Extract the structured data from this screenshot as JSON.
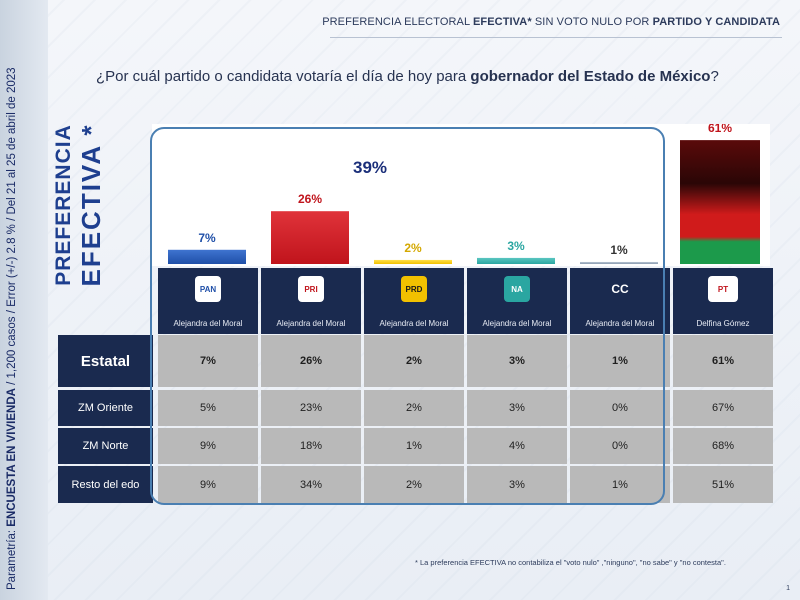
{
  "header": {
    "prefix": "PREFERENCIA ELECTORAL ",
    "bold1": "EFECTIVA*",
    "middle": " SIN VOTO NULO POR ",
    "bold2": "PARTIDO Y CANDIDATA"
  },
  "question": {
    "text": "¿Por cuál partido o candidata votaría el día de hoy para ",
    "bold": "gobernador del Estado de México",
    "suffix": "?"
  },
  "side_note": {
    "prefix": "Parametría: ",
    "bold": "ENCUESTA EN VIVIENDA",
    "rest": " / 1,200 casos / Error (+/-) 2.8 % / Del 21 al 25 de abril de 2023"
  },
  "pref_label": {
    "line1": "PREFERENCIA",
    "line2": "EFECTIVA *"
  },
  "group_total": "39%",
  "colors": {
    "pan": "#1f4fa8",
    "pri": "#c0141c",
    "prd": "#f2c100",
    "panal": "#2aa6a1",
    "cc": "#8a9bb0",
    "morena_top": "#5a0a0a",
    "morena_mid": "#d01b1b",
    "morena_bottom": "#1c9a4b",
    "header_dark": "#1a2a4f",
    "cell_grey": "#b9b9b9"
  },
  "parties": [
    {
      "logo_text": "PAN",
      "logo_icon": "pan-logo-icon",
      "candidate": "Alejandra del Moral"
    },
    {
      "logo_text": "PRI",
      "logo_icon": "pri-logo-icon",
      "candidate": "Alejandra del Moral"
    },
    {
      "logo_text": "PRD",
      "logo_icon": "prd-logo-icon",
      "candidate": "Alejandra del Moral"
    },
    {
      "logo_text": "NA",
      "logo_icon": "nueva-alianza-logo-icon",
      "candidate": "Alejandra del Moral"
    },
    {
      "logo_text": "CC",
      "logo_icon": "cc-text-icon",
      "candidate": "Alejandra del Moral"
    },
    {
      "logo_text": "PT",
      "logo_icon": "pt-morena-logo-icon",
      "candidate": "Delfina Gómez"
    }
  ],
  "chart_data": {
    "type": "bar",
    "categories": [
      "PAN",
      "PRI",
      "PRD",
      "Nueva Alianza",
      "CC",
      "PT-Morena"
    ],
    "values": [
      7,
      26,
      2,
      3,
      1,
      61
    ],
    "value_labels": [
      "7%",
      "26%",
      "2%",
      "3%",
      "1%",
      "61%"
    ],
    "label_colors": [
      "#1f4fa8",
      "#c0141c",
      "#d4a800",
      "#2aa6a1",
      "#333333",
      "#c0141c"
    ],
    "ylim": [
      0,
      65
    ],
    "grouped_total": {
      "categories": [
        "PAN",
        "PRI",
        "PRD",
        "Nueva Alianza",
        "CC"
      ],
      "label": "39%"
    }
  },
  "table": {
    "rows": [
      {
        "label": "Estatal",
        "values": [
          "7%",
          "26%",
          "2%",
          "3%",
          "1%",
          "61%"
        ],
        "bold": true
      },
      {
        "label": "ZM Oriente",
        "values": [
          "5%",
          "23%",
          "2%",
          "3%",
          "0%",
          "67%"
        ],
        "bold": false
      },
      {
        "label": "ZM Norte",
        "values": [
          "9%",
          "18%",
          "1%",
          "4%",
          "0%",
          "68%"
        ],
        "bold": false
      },
      {
        "label": "Resto del edo",
        "values": [
          "9%",
          "34%",
          "2%",
          "3%",
          "1%",
          "51%"
        ],
        "bold": false
      }
    ]
  },
  "footnote": "* La preferencia EFECTIVA no contabiliza el \"voto nulo\" ,\"ninguno\", \"no sabe\" y \"no contesta\".",
  "page_number": "1"
}
